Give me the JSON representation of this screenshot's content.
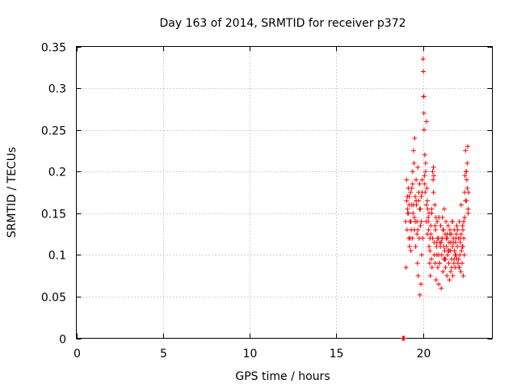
{
  "chart_data": {
    "type": "scatter",
    "title": "Day 163 of 2014, SRMTID for receiver p372",
    "xlabel": "GPS time / hours",
    "ylabel": "SRMTID / TECUs",
    "xlim": [
      0,
      24
    ],
    "ylim": [
      0,
      0.35
    ],
    "xticks": [
      "0",
      "5",
      "10",
      "15",
      "20"
    ],
    "xtick_values": [
      0,
      5,
      10,
      15,
      20
    ],
    "yticks": [
      "0",
      "0.05",
      "0.1",
      "0.15",
      "0.2",
      "0.25",
      "0.3",
      "0.35"
    ],
    "ytick_values": [
      0,
      0.05,
      0.1,
      0.15,
      0.2,
      0.25,
      0.3,
      0.35
    ],
    "grid": true,
    "marker": "+",
    "color": "#ff0000",
    "series": [
      {
        "name": "SRMTID",
        "x": [
          18.82,
          18.84,
          18.86,
          18.88,
          18.9,
          18.92,
          19.0,
          19.02,
          19.05,
          19.08,
          19.1,
          19.12,
          19.15,
          19.18,
          19.2,
          19.22,
          19.25,
          19.28,
          19.3,
          19.32,
          19.35,
          19.38,
          19.4,
          19.42,
          19.45,
          19.48,
          19.5,
          19.52,
          19.55,
          19.58,
          19.6,
          19.62,
          19.65,
          19.68,
          19.7,
          19.72,
          19.75,
          19.78,
          19.8,
          19.82,
          19.85,
          19.88,
          19.9,
          19.92,
          19.95,
          19.98,
          20.0,
          20.02,
          20.03,
          20.05,
          20.06,
          20.08,
          20.1,
          20.12,
          20.15,
          20.18,
          20.2,
          20.22,
          20.25,
          20.28,
          20.3,
          20.32,
          20.35,
          20.38,
          20.4,
          20.42,
          20.45,
          20.48,
          20.5,
          20.52,
          20.55,
          20.58,
          20.6,
          20.62,
          20.65,
          20.68,
          20.7,
          20.72,
          20.75,
          20.78,
          20.8,
          20.82,
          20.85,
          20.88,
          20.9,
          20.92,
          20.95,
          20.98,
          21.0,
          21.02,
          21.05,
          21.08,
          21.1,
          21.12,
          21.15,
          21.18,
          21.2,
          21.22,
          21.25,
          21.28,
          21.3,
          21.32,
          21.35,
          21.38,
          21.4,
          21.42,
          21.45,
          21.48,
          21.5,
          21.52,
          21.55,
          21.58,
          21.6,
          21.62,
          21.65,
          21.68,
          21.7,
          21.72,
          21.75,
          21.78,
          21.8,
          21.82,
          21.85,
          21.88,
          21.9,
          21.92,
          21.95,
          21.98,
          22.0,
          22.02,
          22.05,
          22.08,
          22.1,
          22.12,
          22.15,
          22.18,
          22.2,
          22.22,
          22.25,
          22.28,
          22.3,
          22.32,
          22.35,
          22.38,
          22.4,
          22.42,
          22.45,
          22.48,
          22.5,
          22.52,
          22.55,
          22.58,
          22.6,
          22.62,
          19.05,
          19.15,
          19.25,
          19.35,
          19.45,
          19.55,
          19.65,
          19.75,
          19.85,
          19.95,
          20.05,
          20.15,
          20.25,
          20.35,
          20.45,
          20.55,
          20.65,
          20.75,
          20.85,
          20.95,
          21.05,
          21.15,
          21.25,
          21.35,
          21.45,
          21.55,
          21.65,
          21.75,
          21.85,
          21.95,
          22.05,
          22.15,
          22.25,
          22.35,
          22.45,
          22.55,
          19.1,
          19.2,
          19.3,
          19.4,
          19.5,
          19.6,
          19.7,
          19.8,
          19.9,
          20.1,
          20.2,
          20.3,
          20.4,
          20.5,
          20.6,
          20.7,
          20.8,
          20.9,
          21.1,
          21.2,
          21.3,
          21.4,
          21.5,
          21.6,
          21.7,
          21.8,
          21.9,
          22.1,
          22.2,
          22.3,
          22.4,
          22.5,
          22.6
        ],
        "y": [
          0.0,
          0.0,
          0.0,
          0.0,
          0.0,
          0.0,
          0.14,
          0.085,
          0.19,
          0.13,
          0.17,
          0.15,
          0.18,
          0.12,
          0.16,
          0.11,
          0.14,
          0.175,
          0.105,
          0.13,
          0.16,
          0.12,
          0.185,
          0.15,
          0.225,
          0.21,
          0.13,
          0.24,
          0.17,
          0.11,
          0.19,
          0.16,
          0.14,
          0.09,
          0.205,
          0.075,
          0.165,
          0.12,
          0.185,
          0.052,
          0.155,
          0.065,
          0.14,
          0.1,
          0.175,
          0.12,
          0.335,
          0.32,
          0.29,
          0.27,
          0.25,
          0.195,
          0.22,
          0.175,
          0.2,
          0.14,
          0.16,
          0.18,
          0.125,
          0.155,
          0.145,
          0.13,
          0.11,
          0.09,
          0.12,
          0.075,
          0.135,
          0.095,
          0.15,
          0.085,
          0.12,
          0.19,
          0.205,
          0.195,
          0.115,
          0.16,
          0.09,
          0.13,
          0.07,
          0.11,
          0.1,
          0.14,
          0.085,
          0.12,
          0.065,
          0.145,
          0.09,
          0.115,
          0.11,
          0.135,
          0.06,
          0.1,
          0.12,
          0.145,
          0.08,
          0.13,
          0.095,
          0.155,
          0.105,
          0.125,
          0.085,
          0.14,
          0.11,
          0.075,
          0.12,
          0.1,
          0.135,
          0.09,
          0.115,
          0.07,
          0.13,
          0.105,
          0.08,
          0.125,
          0.095,
          0.14,
          0.11,
          0.075,
          0.12,
          0.09,
          0.13,
          0.105,
          0.085,
          0.115,
          0.1,
          0.125,
          0.095,
          0.11,
          0.13,
          0.09,
          0.12,
          0.085,
          0.14,
          0.1,
          0.115,
          0.08,
          0.125,
          0.105,
          0.09,
          0.135,
          0.11,
          0.075,
          0.12,
          0.1,
          0.145,
          0.195,
          0.225,
          0.2,
          0.165,
          0.19,
          0.21,
          0.23,
          0.15,
          0.175,
          0.165,
          0.15,
          0.12,
          0.18,
          0.16,
          0.14,
          0.125,
          0.175,
          0.135,
          0.19,
          0.29,
          0.21,
          0.165,
          0.15,
          0.125,
          0.2,
          0.1,
          0.145,
          0.12,
          0.09,
          0.115,
          0.13,
          0.095,
          0.12,
          0.105,
          0.125,
          0.085,
          0.115,
          0.1,
          0.135,
          0.095,
          0.12,
          0.11,
          0.14,
          0.165,
          0.18,
          0.155,
          0.17,
          0.14,
          0.2,
          0.145,
          0.165,
          0.13,
          0.155,
          0.17,
          0.185,
          0.26,
          0.14,
          0.105,
          0.155,
          0.175,
          0.135,
          0.115,
          0.1,
          0.12,
          0.11,
          0.095,
          0.125,
          0.105,
          0.115,
          0.14,
          0.095,
          0.12,
          0.085,
          0.16,
          0.13,
          0.175,
          0.2,
          0.155
        ]
      }
    ]
  }
}
